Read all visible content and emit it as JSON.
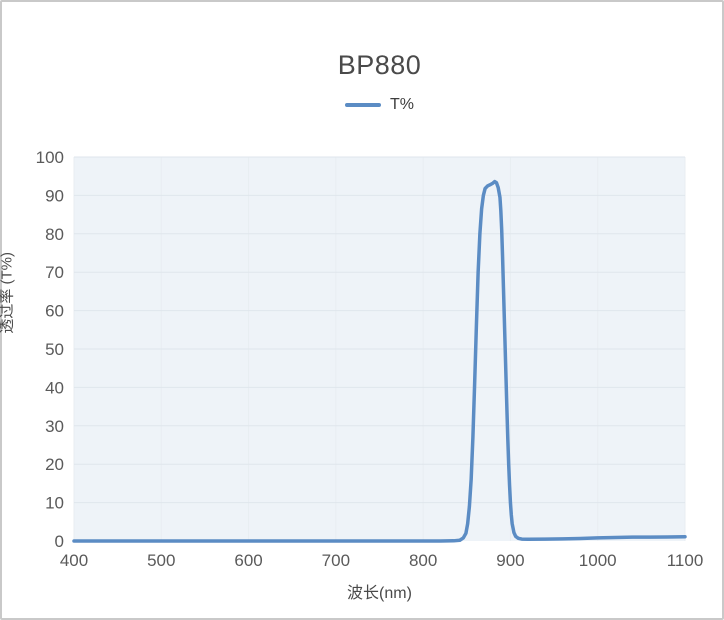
{
  "chart": {
    "title": "BP880",
    "legend": [
      "T%"
    ],
    "xlabel": "波长(nm)",
    "ylabel": "透过率 (T%)"
  },
  "colors": {
    "line": "#5b8cc4",
    "plot_bg": "#eef3f8",
    "grid_h": "#dfe6ec",
    "grid_v": "#e8edf2",
    "tick_text": "#5a5a5a",
    "title_text": "#4a4a4a",
    "border": "#c9c9c9"
  },
  "chart_data": {
    "type": "line",
    "title": "BP880",
    "xlabel": "波长(nm)",
    "ylabel": "透过率 (T%)",
    "xlim": [
      400,
      1100
    ],
    "ylim": [
      0,
      100
    ],
    "xticks": [
      400,
      500,
      600,
      700,
      800,
      900,
      1000,
      1100
    ],
    "yticks": [
      0,
      10,
      20,
      30,
      40,
      50,
      60,
      70,
      80,
      90,
      100
    ],
    "grid": true,
    "legend_position": "top",
    "series": [
      {
        "name": "T%",
        "color": "#5b8cc4",
        "points": [
          [
            400,
            0
          ],
          [
            450,
            0
          ],
          [
            500,
            0
          ],
          [
            550,
            0
          ],
          [
            600,
            0
          ],
          [
            650,
            0
          ],
          [
            700,
            0
          ],
          [
            750,
            0
          ],
          [
            800,
            0
          ],
          [
            820,
            0
          ],
          [
            835,
            0.05
          ],
          [
            842,
            0.2
          ],
          [
            846,
            0.8
          ],
          [
            849,
            2
          ],
          [
            851,
            4.5
          ],
          [
            853,
            9
          ],
          [
            855,
            16
          ],
          [
            857,
            27
          ],
          [
            859,
            41
          ],
          [
            861,
            56
          ],
          [
            863,
            70
          ],
          [
            865,
            80
          ],
          [
            867,
            86.5
          ],
          [
            869,
            90
          ],
          [
            871,
            91.8
          ],
          [
            874,
            92.5
          ],
          [
            877,
            92.8
          ],
          [
            880,
            93.2
          ],
          [
            882,
            93.6
          ],
          [
            884,
            93.3
          ],
          [
            886,
            92
          ],
          [
            888,
            89.5
          ],
          [
            889,
            86
          ],
          [
            890,
            81
          ],
          [
            891,
            74
          ],
          [
            892,
            66
          ],
          [
            893,
            58
          ],
          [
            894,
            50
          ],
          [
            895,
            42
          ],
          [
            896,
            34
          ],
          [
            897,
            26.5
          ],
          [
            898,
            20
          ],
          [
            899,
            14.5
          ],
          [
            900,
            10
          ],
          [
            901,
            6.8
          ],
          [
            902,
            4.5
          ],
          [
            904,
            2.2
          ],
          [
            906,
            1.2
          ],
          [
            909,
            0.7
          ],
          [
            913,
            0.5
          ],
          [
            920,
            0.45
          ],
          [
            940,
            0.5
          ],
          [
            960,
            0.55
          ],
          [
            980,
            0.65
          ],
          [
            1000,
            0.8
          ],
          [
            1020,
            0.9
          ],
          [
            1040,
            1.0
          ],
          [
            1060,
            1.0
          ],
          [
            1080,
            1.05
          ],
          [
            1100,
            1.1
          ]
        ]
      }
    ]
  }
}
